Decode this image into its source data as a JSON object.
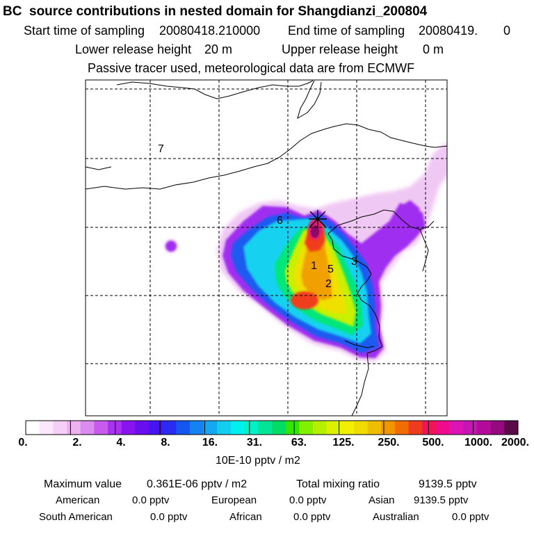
{
  "header": {
    "title": "BC  source contributions in nested domain for Shangdianzi_200804",
    "start_label": "Start time of sampling",
    "start_value": "20080418.210000",
    "end_label": "End time of sampling",
    "end_value": "20080419.",
    "end_value2": "0",
    "lower_label": "Lower release height",
    "lower_value": "20 m",
    "upper_label": "Upper release height",
    "upper_value": "0 m",
    "note": "Passive tracer used, meteorological data are from ECMWF"
  },
  "map": {
    "region_labels": [
      "1",
      "2",
      "3",
      "5",
      "6",
      "7"
    ],
    "station_marker": "star"
  },
  "colorbar": {
    "colors": [
      "#ffffff",
      "#fce8fc",
      "#f6cff6",
      "#eeb2f0",
      "#dc8cf0",
      "#c85af0",
      "#a832f0",
      "#8a14f0",
      "#6a0ef0",
      "#4614f0",
      "#2a2cf0",
      "#1456f0",
      "#1482f0",
      "#14a8f0",
      "#14cef0",
      "#00f0f0",
      "#00f0c8",
      "#00e696",
      "#00dc64",
      "#32e600",
      "#82f000",
      "#b4f000",
      "#dcf000",
      "#f0f000",
      "#f0dc00",
      "#f0be00",
      "#f09600",
      "#f06e00",
      "#f03c1e",
      "#f0145a",
      "#f00a8c",
      "#dc14b4",
      "#c814b4",
      "#b40a9a",
      "#960a80",
      "#5a0a46"
    ],
    "ticks": [
      "0.",
      "2.",
      "4.",
      "8.",
      "16.",
      "31.",
      "63.",
      "125.",
      "250.",
      "500.",
      "1000.",
      "2000."
    ],
    "unit": "10E-10 pptv / m2"
  },
  "summary": {
    "max_label": "Maximum value",
    "max_value": "0.361E-06 pptv / m2",
    "total_label": "Total mixing ratio",
    "total_value": "9139.5 pptv",
    "regions": [
      {
        "label": "American",
        "value": "0.0 pptv"
      },
      {
        "label": "European",
        "value": "0.0 pptv"
      },
      {
        "label": "Asian",
        "value": "9139.5 pptv"
      },
      {
        "label": "South American",
        "value": "0.0 pptv"
      },
      {
        "label": "African",
        "value": "0.0 pptv"
      },
      {
        "label": "Australian",
        "value": "0.0 pptv"
      }
    ]
  }
}
